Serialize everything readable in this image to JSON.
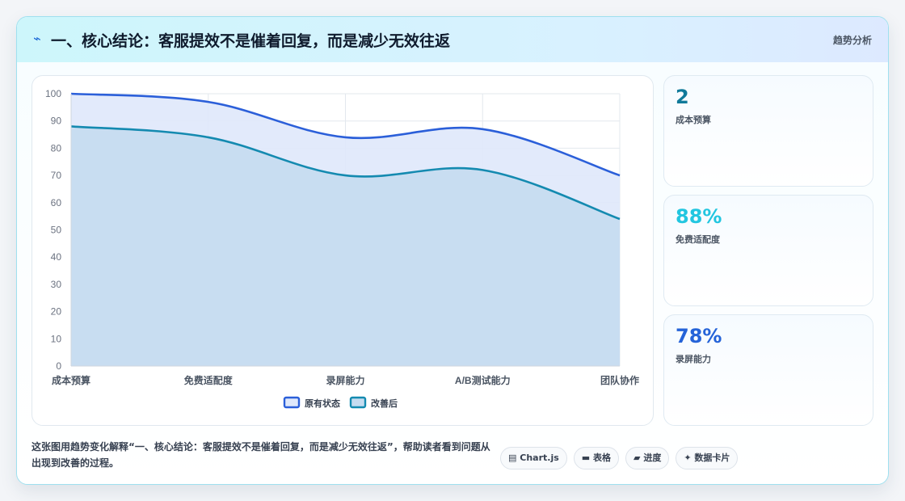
{
  "header": {
    "icon": "lightning-icon",
    "title": "一、核心结论：客服提效不是催着回复，而是减少无效往返",
    "badge": "趋势分析"
  },
  "chart_data": {
    "type": "area",
    "categories": [
      "成本预算",
      "免费适配度",
      "录屏能力",
      "A/B测试能力",
      "团队协作"
    ],
    "series": [
      {
        "name": "原有状态",
        "values": [
          100,
          97,
          84,
          87,
          70
        ],
        "color": "#2b5fd9",
        "fill": "#dfe8fb"
      },
      {
        "name": "改善后",
        "values": [
          88,
          84,
          70,
          72,
          54
        ],
        "color": "#148ab0",
        "fill": "#c5dcf0"
      }
    ],
    "ylim": [
      0,
      100
    ],
    "yticks": [
      0,
      10,
      20,
      30,
      40,
      50,
      60,
      70,
      80,
      90,
      100
    ],
    "grid": true,
    "legend_position": "bottom"
  },
  "stats": [
    {
      "value": "2",
      "label": "成本预算",
      "color": "#117a9a"
    },
    {
      "value": "88%",
      "label": "免费适配度",
      "color": "#22c6e0"
    },
    {
      "value": "78%",
      "label": "录屏能力",
      "color": "#2563d8"
    }
  ],
  "description": "这张图用趋势变化解释“一、核心结论：客服提效不是催着回复，而是减少无效往返”，帮助读者看到问题从出现到改善的过程。",
  "tags": [
    {
      "label": "Chart.js",
      "icon": "chart-icon",
      "glyph": "▤"
    },
    {
      "label": "表格",
      "icon": "table-icon",
      "glyph": "▬"
    },
    {
      "label": "进度",
      "icon": "progress-icon",
      "glyph": "▰"
    },
    {
      "label": "数据卡片",
      "icon": "sparkle-icon",
      "glyph": "✦"
    }
  ]
}
